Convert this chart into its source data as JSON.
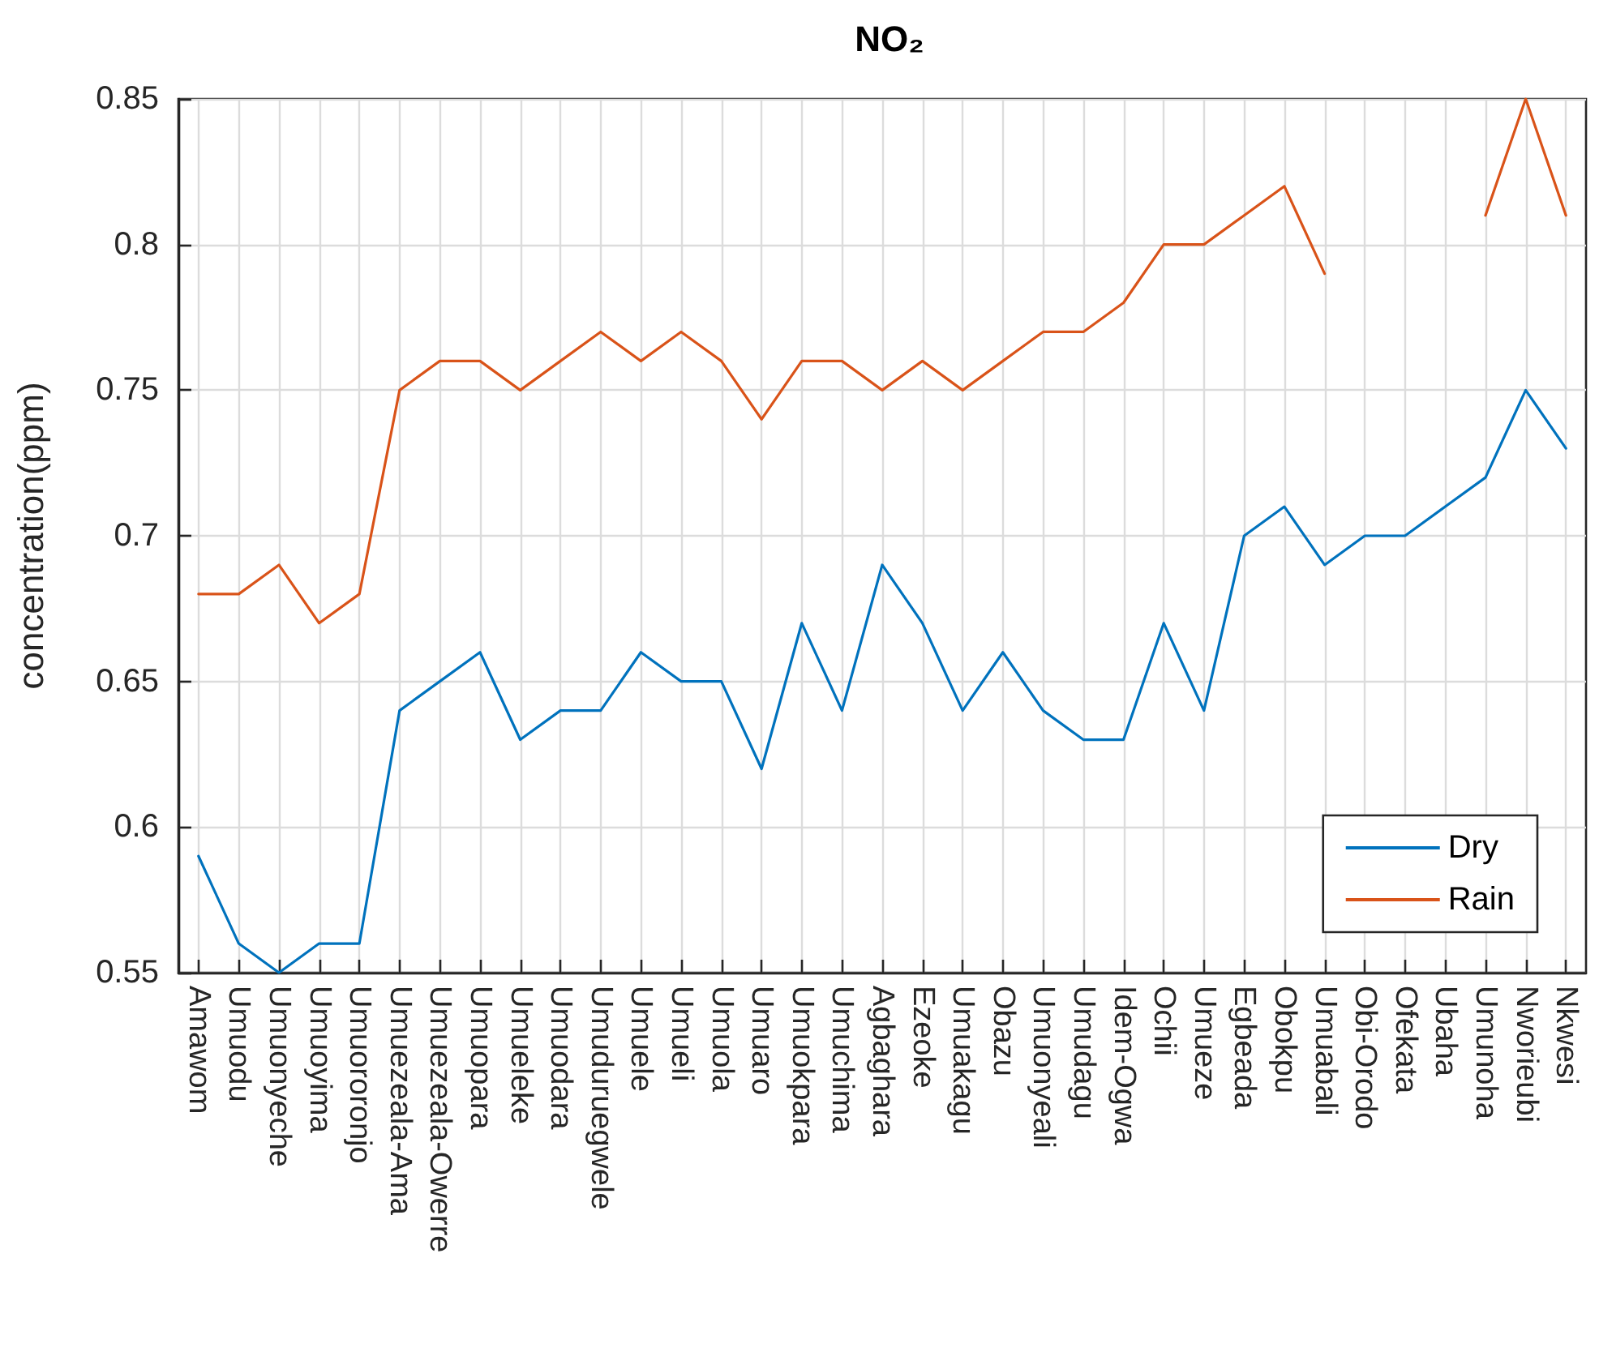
{
  "chart_data": {
    "type": "line",
    "title": "NO₂",
    "ylabel": "concentration(ppm)",
    "categories": [
      "Amawom",
      "Umuodu",
      "Umuonyeche",
      "Umuoyima",
      "Umuororonjo",
      "Umuezeala-Ama",
      "Umuezeala-Owerre",
      "Umuopara",
      "Umueleke",
      "Umuodara",
      "Umuduruegwele",
      "Umuele",
      "Umueli",
      "Umuola",
      "Umuaro",
      "Umuokpara",
      "Umuchima",
      "Agbaghara",
      "Ezeoke",
      "Umuakagu",
      "Obazu",
      "Umuonyeali",
      "Umudagu",
      "Idem-Ogwa",
      "Ochii",
      "Umueze",
      "Egbeada",
      "Obokpu",
      "Umuabali",
      "Obi-Orodo",
      "Ofekata",
      "Ubaha",
      "Umunoha",
      "Nworieubi",
      "Nkwesi"
    ],
    "series": [
      {
        "name": "Dry",
        "color": "#0072bd",
        "values": [
          0.59,
          0.56,
          0.55,
          0.56,
          0.56,
          0.64,
          0.65,
          0.66,
          0.63,
          0.64,
          0.64,
          0.66,
          0.65,
          0.65,
          0.62,
          0.67,
          0.64,
          0.69,
          0.67,
          0.64,
          0.66,
          0.64,
          0.63,
          0.63,
          0.67,
          0.64,
          0.7,
          0.71,
          0.69,
          0.7,
          0.7,
          0.71,
          0.72,
          0.75,
          0.73
        ]
      },
      {
        "name": "Rain",
        "color": "#d95319",
        "values": [
          0.68,
          0.68,
          0.69,
          0.67,
          0.68,
          0.75,
          0.76,
          0.76,
          0.75,
          0.76,
          0.77,
          0.76,
          0.77,
          0.76,
          0.74,
          0.76,
          0.76,
          0.75,
          0.76,
          0.75,
          0.76,
          0.77,
          0.77,
          0.78,
          0.8,
          0.8,
          0.81,
          0.82,
          0.79,
          null,
          null,
          null,
          0.81,
          0.85,
          0.81
        ]
      }
    ],
    "ylim": [
      0.55,
      0.85
    ],
    "yticks": [
      0.55,
      0.6,
      0.65,
      0.7,
      0.75,
      0.8,
      0.85
    ],
    "grid": true,
    "legend": "bottom right",
    "marker": "none",
    "line_style": "solid"
  }
}
